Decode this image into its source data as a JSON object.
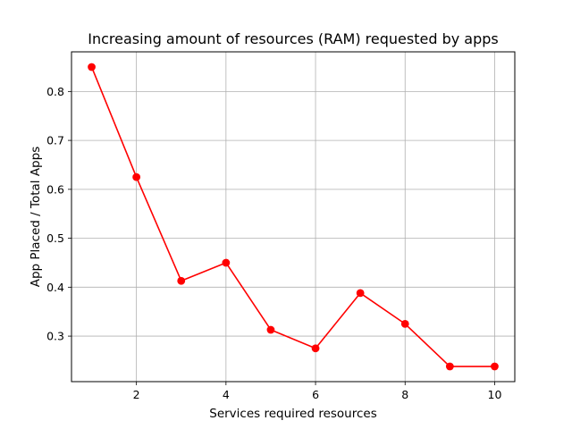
{
  "chart_data": {
    "type": "line",
    "title": "Increasing amount of resources (RAM) requested by apps",
    "xlabel": "Services required resources",
    "ylabel": "App Placed / Total Apps",
    "x": [
      1,
      2,
      3,
      4,
      5,
      6,
      7,
      8,
      9,
      10
    ],
    "series": [
      {
        "name": "App Placed / Total Apps",
        "color": "#ff0000",
        "marker": "circle",
        "values": [
          0.85,
          0.625,
          0.413,
          0.45,
          0.313,
          0.275,
          0.388,
          0.325,
          0.238,
          0.238
        ]
      }
    ],
    "xlim": [
      0.55,
      10.45
    ],
    "ylim": [
      0.207,
      0.881
    ],
    "xticks": [
      2,
      4,
      6,
      8,
      10
    ],
    "yticks": [
      0.3,
      0.4,
      0.5,
      0.6,
      0.7,
      0.8
    ],
    "xtick_labels": [
      "2",
      "4",
      "6",
      "8",
      "10"
    ],
    "ytick_labels": [
      "0.3",
      "0.4",
      "0.5",
      "0.6",
      "0.7",
      "0.8"
    ],
    "grid": true,
    "legend": "none"
  }
}
